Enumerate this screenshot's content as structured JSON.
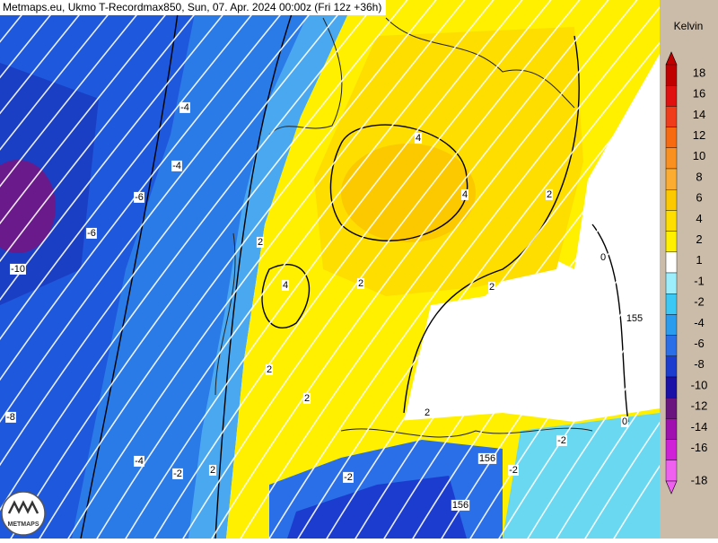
{
  "header": {
    "title": "Metmaps.eu, Ukmo T-Recordmax850, Sun, 07. Apr. 2024 00:00z (Fri 12z +36h)"
  },
  "legend": {
    "unit": "Kelvin",
    "items": [
      {
        "label": "18",
        "color": "#c00000"
      },
      {
        "label": "16",
        "color": "#e01010"
      },
      {
        "label": "14",
        "color": "#f03c1a"
      },
      {
        "label": "12",
        "color": "#f86a10"
      },
      {
        "label": "10",
        "color": "#fa9020"
      },
      {
        "label": "8",
        "color": "#fcac30"
      },
      {
        "label": "6",
        "color": "#fcc800"
      },
      {
        "label": "4",
        "color": "#fede00"
      },
      {
        "label": "2",
        "color": "#fff000"
      },
      {
        "label": "1",
        "color": "#ffffff"
      },
      {
        "label": "-1",
        "color": "#9ceefc"
      },
      {
        "label": "-2",
        "color": "#3cc8f4"
      },
      {
        "label": "-4",
        "color": "#2a9cf0"
      },
      {
        "label": "-6",
        "color": "#2a6ee8"
      },
      {
        "label": "-8",
        "color": "#1c3cd0"
      },
      {
        "label": "-10",
        "color": "#1a10a8"
      },
      {
        "label": "-12",
        "color": "#6a1480"
      },
      {
        "label": "-14",
        "color": "#a010b0"
      },
      {
        "label": "-16",
        "color": "#d020d8"
      },
      {
        "label": "-18",
        "color": "#f060f0"
      }
    ]
  },
  "map": {
    "contour_labels": [
      "-4",
      "-4",
      "-6",
      "-6",
      "-10",
      "-8",
      "-4",
      "-2",
      "2",
      "4",
      "4",
      "2",
      "2",
      "4",
      "2",
      "2",
      "2",
      "2",
      "0",
      "155",
      "0",
      "156",
      "156",
      "-2",
      "-2",
      "2",
      "-2"
    ],
    "logo": "METMAPS"
  }
}
